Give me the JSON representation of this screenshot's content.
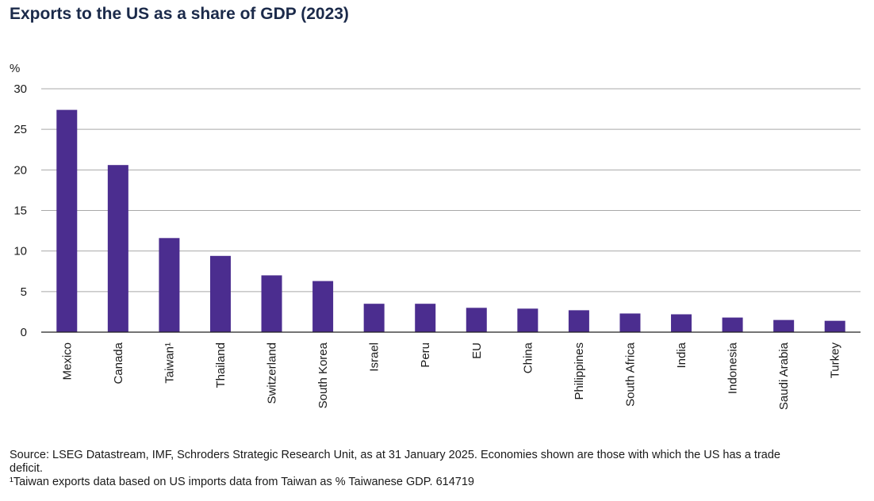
{
  "title": "Exports to the US as a share of GDP (2023)",
  "colors": {
    "bar": "#4b2d8f",
    "grid": "#a9a9a9",
    "axis": "#222222",
    "title": "#1b2a4a"
  },
  "chart_data": {
    "type": "bar",
    "title": "Exports to the US as a share of GDP (2023)",
    "xlabel": "",
    "ylabel": "%",
    "ylim": [
      0,
      30
    ],
    "yticks": [
      0,
      5,
      10,
      15,
      20,
      25,
      30
    ],
    "grid": true,
    "categories": [
      "Mexico",
      "Canada",
      "Taiwan¹",
      "Thailand",
      "Switzerland",
      "South Korea",
      "Israel",
      "Peru",
      "EU",
      "China",
      "Philippines",
      "South Africa",
      "India",
      "Indonesia",
      "Saudi Arabia",
      "Turkey"
    ],
    "values": [
      27.4,
      20.6,
      11.6,
      9.4,
      7.0,
      6.3,
      3.5,
      3.5,
      3.0,
      2.9,
      2.7,
      2.3,
      2.2,
      1.8,
      1.5,
      1.4
    ]
  },
  "footnotes": {
    "source": "Source: LSEG Datastream, IMF, Schroders Strategic Research Unit, as at 31 January 2025. Economies shown are those with which the US has a trade deficit.",
    "taiwan": "¹Taiwan exports data based on US imports data from Taiwan as % Taiwanese GDP. 614719"
  }
}
